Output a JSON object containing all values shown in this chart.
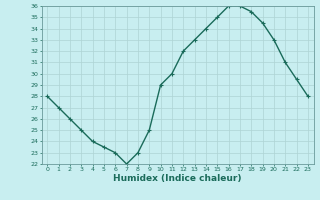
{
  "x": [
    0,
    1,
    2,
    3,
    4,
    5,
    6,
    7,
    8,
    9,
    10,
    11,
    12,
    13,
    14,
    15,
    16,
    17,
    18,
    19,
    20,
    21,
    22,
    23
  ],
  "y": [
    28,
    27,
    26,
    25,
    24,
    23.5,
    23,
    22,
    23,
    25,
    29,
    30,
    32,
    33,
    34,
    35,
    36,
    36,
    35.5,
    34.5,
    33,
    31,
    29.5,
    28
  ],
  "line_color": "#1a6b5a",
  "bg_color": "#c8eef0",
  "grid_color": "#aed4d4",
  "xlabel": "Humidex (Indice chaleur)",
  "ylim": [
    22,
    36
  ],
  "xlim": [
    -0.5,
    23.5
  ],
  "yticks": [
    22,
    23,
    24,
    25,
    26,
    27,
    28,
    29,
    30,
    31,
    32,
    33,
    34,
    35,
    36
  ],
  "xticks": [
    0,
    1,
    2,
    3,
    4,
    5,
    6,
    7,
    8,
    9,
    10,
    11,
    12,
    13,
    14,
    15,
    16,
    17,
    18,
    19,
    20,
    21,
    22,
    23
  ],
  "marker": "+",
  "linewidth": 1.0,
  "markersize": 3,
  "tick_fontsize": 4.5,
  "xlabel_fontsize": 6.5,
  "spine_color": "#6a9a9a",
  "tick_color": "#1a6b5a"
}
